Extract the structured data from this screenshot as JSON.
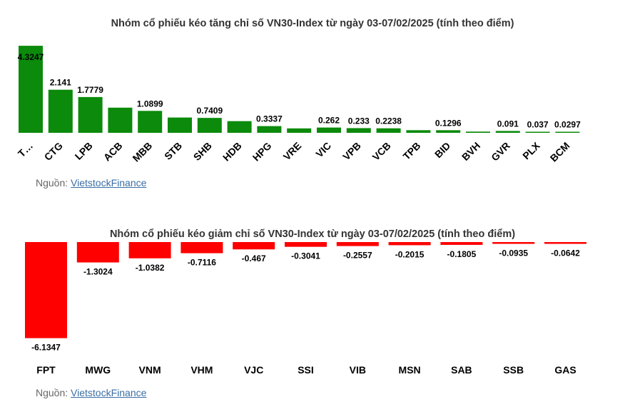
{
  "source": {
    "prefix": "Nguồn: ",
    "link_text": "VietstockFinance"
  },
  "colors": {
    "increase": "#0b8a0b",
    "decrease": "#ff0000"
  },
  "chart_data": [
    {
      "type": "bar",
      "title": "Nhóm cổ phiếu kéo tăng chỉ số VN30-Index từ ngày 03-07/02/2025 (tính theo điểm)",
      "categories": [
        "T…",
        "CTG",
        "LPB",
        "ACB",
        "MBB",
        "STB",
        "SHB",
        "HDB",
        "HPG",
        "VRE",
        "VIC",
        "VPB",
        "VCB",
        "TPB",
        "BID",
        "BVH",
        "GVR",
        "PLX",
        "BCM"
      ],
      "values": [
        4.3247,
        2.141,
        1.7779,
        1.25,
        1.0899,
        0.76,
        0.7409,
        0.58,
        0.3337,
        0.22,
        0.262,
        0.233,
        0.2238,
        0.13,
        0.1296,
        0.06,
        0.091,
        0.037,
        0.0297
      ],
      "value_labels": [
        "4.3247",
        "2.141",
        "1.7779",
        "",
        "1.0899",
        "",
        "0.7409",
        "",
        "0.3337",
        "",
        "0.262",
        "0.233",
        "0.2238",
        "",
        "0.1296",
        "",
        "0.091",
        "0.037",
        "0.0297"
      ],
      "xlabel": "",
      "ylabel": "",
      "ylim": [
        0,
        4.4
      ],
      "grid": false,
      "legend": "none"
    },
    {
      "type": "bar",
      "title": "Nhóm cổ phiếu kéo giảm chỉ số VN30-Index từ ngày 03-07/02/2025 (tính theo điểm)",
      "categories": [
        "FPT",
        "MWG",
        "VNM",
        "VHM",
        "VJC",
        "SSI",
        "VIB",
        "MSN",
        "SAB",
        "SSB",
        "GAS"
      ],
      "values": [
        -6.1347,
        -1.3024,
        -1.0382,
        -0.7116,
        -0.467,
        -0.3041,
        -0.2557,
        -0.2015,
        -0.1805,
        -0.0935,
        -0.0642
      ],
      "value_labels": [
        "-6.1347",
        "-1.3024",
        "-1.0382",
        "-0.7116",
        "-0.467",
        "-0.3041",
        "-0.2557",
        "-0.2015",
        "-0.1805",
        "-0.0935",
        "-0.0642"
      ],
      "xlabel": "",
      "ylabel": "",
      "ylim": [
        -6.2,
        0
      ],
      "grid": false,
      "legend": "none"
    }
  ]
}
